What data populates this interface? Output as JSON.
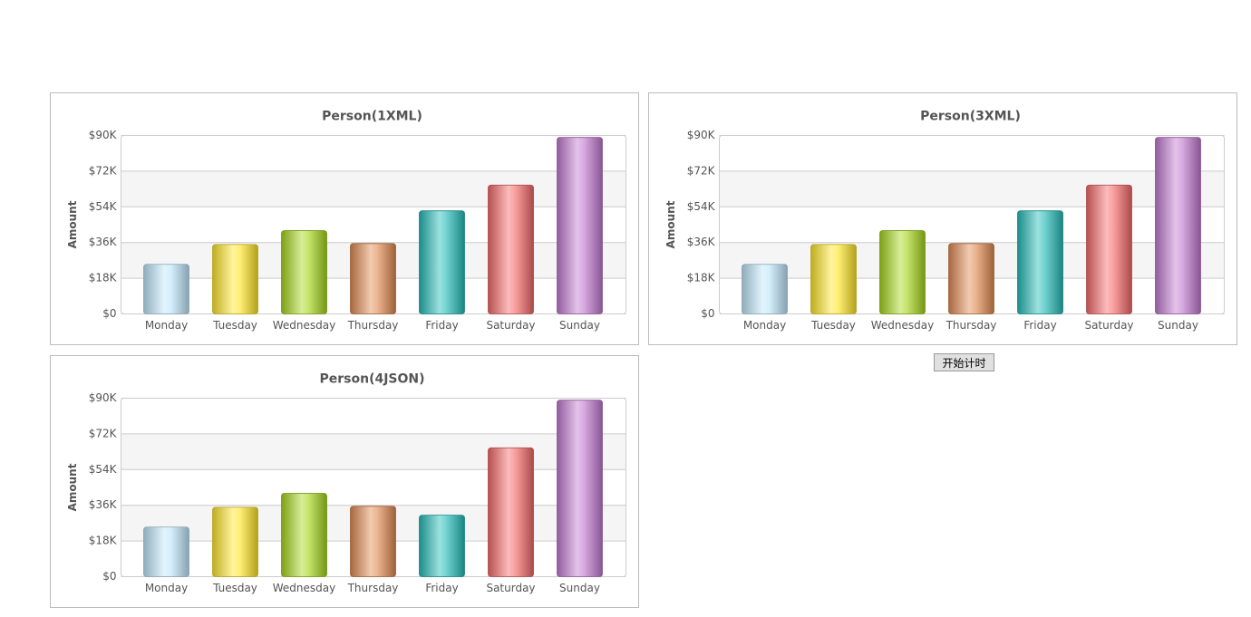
{
  "chart_data": [
    {
      "type": "bar",
      "title": "Person(1XML)",
      "y_label": "Amount",
      "categories": [
        "Monday",
        "Tuesday",
        "Wednesday",
        "Thursday",
        "Friday",
        "Saturday",
        "Sunday"
      ],
      "values": [
        25000,
        35000,
        42000,
        35500,
        52000,
        65000,
        89000
      ],
      "colors": [
        "#bfe6fb",
        "#ffe62a",
        "#a6d61d",
        "#e08b52",
        "#25bcb8",
        "#f56a6a",
        "#c27ad0"
      ],
      "ylim": [
        0,
        90000
      ],
      "yticks": [
        {
          "value": 0,
          "label": "$0"
        },
        {
          "value": 18000,
          "label": "$18K"
        },
        {
          "value": 36000,
          "label": "$36K"
        },
        {
          "value": 54000,
          "label": "$54K"
        },
        {
          "value": 72000,
          "label": "$72K"
        },
        {
          "value": 90000,
          "label": "$90K"
        }
      ],
      "grid": true
    },
    {
      "type": "bar",
      "title": "Person(3XML)",
      "y_label": "Amount",
      "categories": [
        "Monday",
        "Tuesday",
        "Wednesday",
        "Thursday",
        "Friday",
        "Saturday",
        "Sunday"
      ],
      "values": [
        25000,
        35000,
        42000,
        35500,
        52000,
        65000,
        89000
      ],
      "colors": [
        "#bfe6fb",
        "#ffe62a",
        "#a6d61d",
        "#e08b52",
        "#25bcb8",
        "#f56a6a",
        "#c27ad0"
      ],
      "ylim": [
        0,
        90000
      ],
      "yticks": [
        {
          "value": 0,
          "label": "$0"
        },
        {
          "value": 18000,
          "label": "$18K"
        },
        {
          "value": 36000,
          "label": "$36K"
        },
        {
          "value": 54000,
          "label": "$54K"
        },
        {
          "value": 72000,
          "label": "$72K"
        },
        {
          "value": 90000,
          "label": "$90K"
        }
      ],
      "grid": true
    },
    {
      "type": "bar",
      "title": "Person(4JSON)",
      "y_label": "Amount",
      "categories": [
        "Monday",
        "Tuesday",
        "Wednesday",
        "Thursday",
        "Friday",
        "Saturday",
        "Sunday"
      ],
      "values": [
        25000,
        35000,
        42000,
        35500,
        31000,
        65000,
        89000
      ],
      "colors": [
        "#bfe6fb",
        "#ffe62a",
        "#a6d61d",
        "#e08b52",
        "#25bcb8",
        "#f56a6a",
        "#c27ad0"
      ],
      "ylim": [
        0,
        90000
      ],
      "yticks": [
        {
          "value": 0,
          "label": "$0"
        },
        {
          "value": 18000,
          "label": "$18K"
        },
        {
          "value": 36000,
          "label": "$36K"
        },
        {
          "value": 54000,
          "label": "$54K"
        },
        {
          "value": 72000,
          "label": "$72K"
        },
        {
          "value": 90000,
          "label": "$90K"
        }
      ],
      "grid": true
    }
  ],
  "button": {
    "label": "开始计时"
  }
}
